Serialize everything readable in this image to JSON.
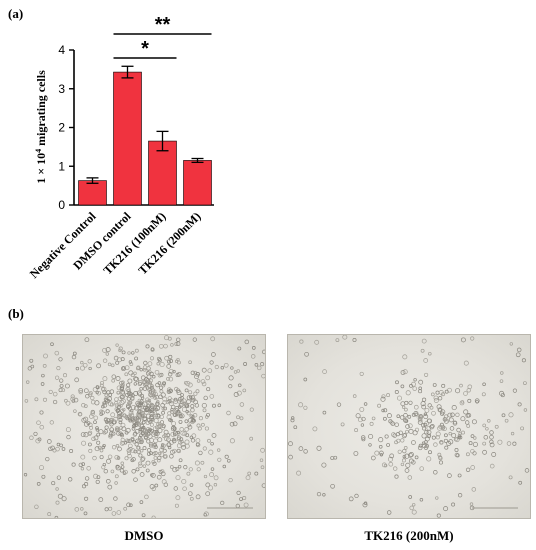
{
  "panel_a_label": "(a)",
  "panel_b_label": "(b)",
  "chart_data": {
    "type": "bar",
    "categories": [
      "Negative Control",
      "DMSO control",
      "TK216 (100nM)",
      "TK216 (200nM)"
    ],
    "values": [
      0.63,
      3.43,
      1.65,
      1.15
    ],
    "errors": [
      0.07,
      0.15,
      0.25,
      0.05
    ],
    "ylabel_prefix": "1 × 10",
    "ylabel_exp": "4",
    "ylabel_suffix": " migrating cells",
    "ylim": [
      0,
      4
    ],
    "yticks": [
      "0",
      "1",
      "2",
      "3",
      "4"
    ],
    "bar_color": "#f0333f",
    "significance": [
      {
        "from": 1,
        "to": 2,
        "label": "*"
      },
      {
        "from": 1,
        "to": 3,
        "label": "**"
      }
    ],
    "grid": false,
    "legend": "none"
  },
  "micrographs": [
    {
      "caption": "DMSO"
    },
    {
      "caption": "TK216 (200nM)"
    }
  ]
}
